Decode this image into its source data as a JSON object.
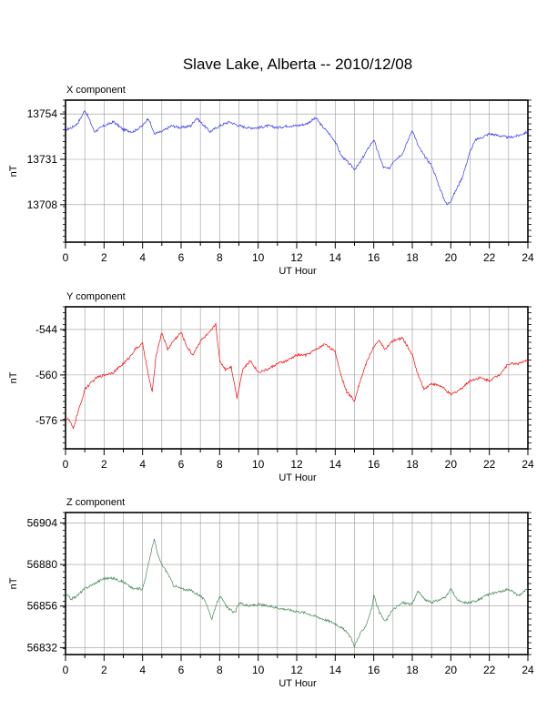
{
  "title": "Slave Lake, Alberta -- 2010/12/08",
  "chart_data": [
    {
      "type": "line",
      "title": "X component",
      "xlabel": "UT Hour",
      "ylabel": "nT",
      "xlim": [
        0,
        24
      ],
      "ylim": [
        13689,
        13761
      ],
      "x_ticks": [
        0,
        2,
        4,
        6,
        8,
        10,
        12,
        14,
        16,
        18,
        20,
        22,
        24
      ],
      "y_ticks": [
        13708,
        13731,
        13754
      ],
      "grid": true,
      "color": "#3333ff",
      "series": [
        {
          "x": [
            0,
            0.3,
            0.6,
            0.8,
            1.0,
            1.2,
            1.5,
            2.0,
            2.5,
            3.0,
            3.5,
            4.0,
            4.3,
            4.6,
            5.0,
            5.5,
            6.0,
            6.5,
            6.8,
            7.0,
            7.5,
            8.0,
            8.5,
            9.0,
            9.5,
            10.0,
            10.5,
            11.0,
            11.5,
            12.0,
            12.5,
            13.0,
            13.3,
            13.6,
            14.0,
            14.3,
            14.6,
            15.0,
            15.2,
            15.5,
            15.8,
            16.0,
            16.2,
            16.5,
            16.8,
            17.0,
            17.5,
            18.0,
            18.3,
            18.6,
            19.0,
            19.3,
            19.6,
            19.8,
            20.0,
            20.3,
            20.6,
            21.0,
            21.3,
            21.6,
            22.0,
            22.5,
            23.0,
            23.5,
            24.0
          ],
          "values": [
            13746,
            13747,
            13749,
            13752,
            13756,
            13752,
            13745,
            13748,
            13750,
            13746,
            13745,
            13748,
            13752,
            13744,
            13745,
            13748,
            13747,
            13748,
            13752,
            13750,
            13745,
            13748,
            13750,
            13748,
            13747,
            13747,
            13748,
            13747,
            13748,
            13748,
            13749,
            13752,
            13748,
            13745,
            13740,
            13733,
            13730,
            13726,
            13728,
            13733,
            13738,
            13741,
            13735,
            13727,
            13726,
            13730,
            13734,
            13746,
            13738,
            13733,
            13728,
            13720,
            13712,
            13708,
            13710,
            13716,
            13722,
            13735,
            13741,
            13742,
            13744,
            13743,
            13742,
            13743,
            13745
          ]
        }
      ]
    },
    {
      "type": "line",
      "title": "Y component",
      "xlabel": "UT Hour",
      "ylabel": "nT",
      "xlim": [
        0,
        24
      ],
      "ylim": [
        -586,
        -536
      ],
      "x_ticks": [
        0,
        2,
        4,
        6,
        8,
        10,
        12,
        14,
        16,
        18,
        20,
        22,
        24
      ],
      "y_ticks": [
        -544,
        -560,
        -576
      ],
      "grid": true,
      "color": "#ff0000",
      "series": [
        {
          "x": [
            0,
            0.2,
            0.4,
            0.6,
            0.8,
            1.0,
            1.3,
            1.6,
            2.0,
            2.5,
            3.0,
            3.3,
            3.6,
            4.0,
            4.3,
            4.5,
            4.7,
            5.0,
            5.3,
            5.6,
            6.0,
            6.3,
            6.6,
            7.0,
            7.5,
            7.8,
            8.0,
            8.3,
            8.6,
            8.9,
            9.2,
            9.6,
            10.0,
            10.5,
            11.0,
            11.5,
            12.0,
            12.5,
            13.0,
            13.5,
            14.0,
            14.3,
            14.6,
            15.0,
            15.3,
            15.6,
            16.0,
            16.3,
            16.6,
            17.0,
            17.5,
            18.0,
            18.3,
            18.6,
            19.0,
            19.5,
            20.0,
            20.5,
            21.0,
            21.5,
            22.0,
            22.5,
            23.0,
            23.5,
            24.0
          ],
          "values": [
            -575,
            -576,
            -579,
            -574,
            -570,
            -565,
            -563,
            -561,
            -560,
            -559,
            -556,
            -554,
            -551,
            -549,
            -560,
            -566,
            -553,
            -545,
            -551,
            -548,
            -545,
            -550,
            -553,
            -548,
            -545,
            -542,
            -555,
            -558,
            -557,
            -568,
            -558,
            -555,
            -559,
            -558,
            -556,
            -555,
            -553,
            -553,
            -551,
            -549,
            -552,
            -560,
            -566,
            -569,
            -562,
            -556,
            -550,
            -548,
            -551,
            -548,
            -547,
            -553,
            -560,
            -565,
            -563,
            -564,
            -567,
            -565,
            -562,
            -561,
            -562,
            -560,
            -556,
            -556,
            -555
          ]
        }
      ]
    },
    {
      "type": "line",
      "title": "Z component",
      "xlabel": "UT Hour",
      "ylabel": "nT",
      "xlim": [
        0,
        24
      ],
      "ylim": [
        56828,
        56910
      ],
      "x_ticks": [
        0,
        2,
        4,
        6,
        8,
        10,
        12,
        14,
        16,
        18,
        20,
        22,
        24
      ],
      "y_ticks": [
        56904,
        56880,
        56856,
        56832
      ],
      "grid": true,
      "color": "#448855",
      "series": [
        {
          "x": [
            0,
            0.3,
            0.6,
            1.0,
            1.5,
            2.0,
            2.5,
            3.0,
            3.5,
            4.0,
            4.2,
            4.4,
            4.6,
            4.8,
            5.0,
            5.3,
            5.6,
            6.0,
            6.5,
            7.0,
            7.3,
            7.6,
            7.8,
            8.0,
            8.4,
            8.8,
            9.0,
            9.5,
            10.0,
            11.0,
            12.0,
            12.5,
            13.0,
            13.5,
            14.0,
            14.5,
            14.8,
            15.0,
            15.3,
            15.6,
            15.9,
            16.0,
            16.3,
            16.6,
            17.0,
            17.5,
            18.0,
            18.3,
            18.6,
            19.0,
            19.5,
            19.8,
            20.0,
            20.3,
            20.6,
            21.0,
            21.5,
            22.0,
            22.5,
            23.0,
            23.5,
            24.0
          ],
          "values": [
            56863,
            56860,
            56862,
            56866,
            56869,
            56872,
            56872,
            56870,
            56866,
            56866,
            56875,
            56885,
            56895,
            56885,
            56880,
            56875,
            56868,
            56866,
            56865,
            56862,
            56858,
            56848,
            56856,
            56862,
            56855,
            56852,
            56858,
            56856,
            56857,
            56855,
            56853,
            56852,
            56850,
            56848,
            56846,
            56842,
            56838,
            56833,
            56840,
            56845,
            56855,
            56862,
            56852,
            56847,
            56854,
            56858,
            56857,
            56865,
            56860,
            56858,
            56860,
            56862,
            56866,
            56860,
            56858,
            56858,
            56860,
            56863,
            56864,
            56866,
            56862,
            56866
          ]
        }
      ]
    }
  ]
}
